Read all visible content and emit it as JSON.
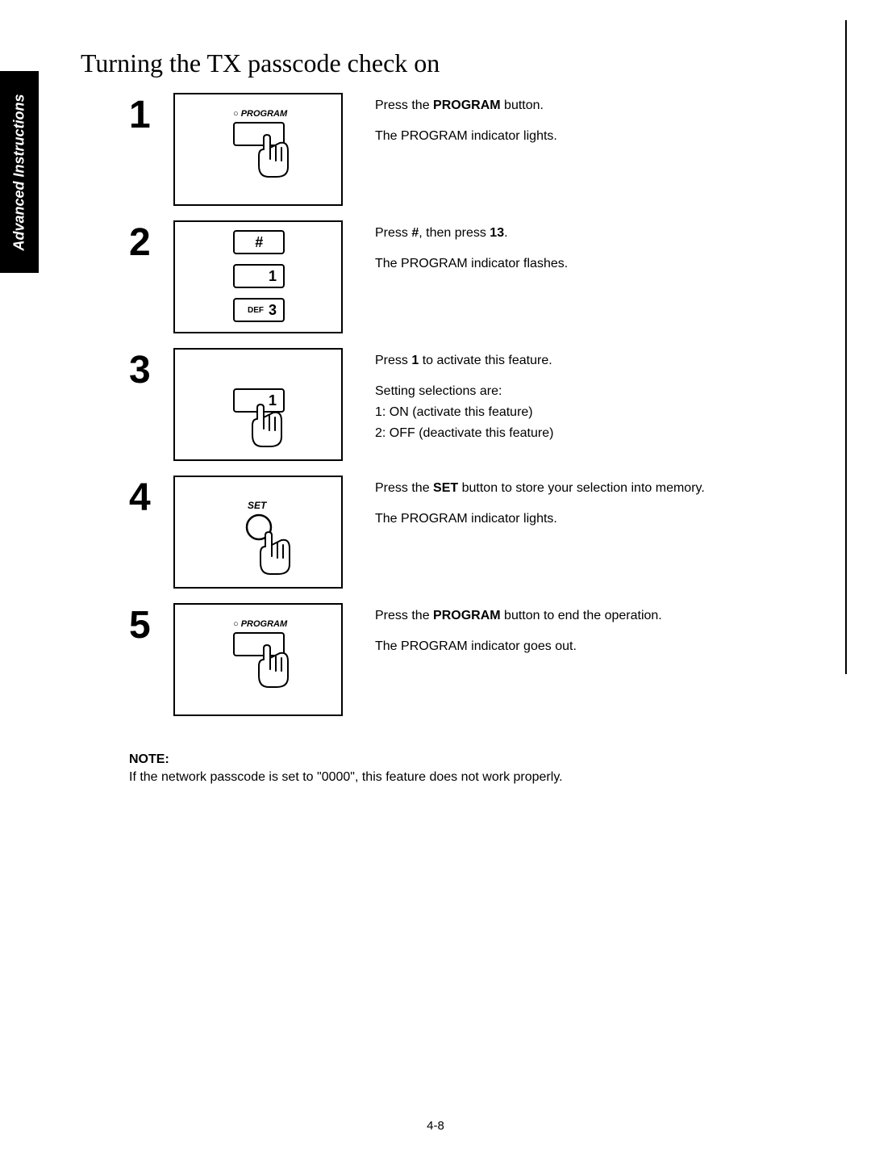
{
  "sideTab": "Advanced Instructions",
  "title": "Turning the TX passcode check on",
  "steps": [
    {
      "num": "1",
      "desc": [
        {
          "pre": "Press the ",
          "bold": "PROGRAM",
          "post": " button."
        },
        {
          "plain": "The PROGRAM indicator lights."
        }
      ],
      "ill": {
        "type": "program"
      }
    },
    {
      "num": "2",
      "desc": [
        {
          "pre": "Press ",
          "bold": "#",
          "mid": ", then press ",
          "bold2": "13",
          "post": "."
        },
        {
          "plain": "The PROGRAM indicator flashes."
        }
      ],
      "ill": {
        "type": "keys3"
      }
    },
    {
      "num": "3",
      "desc": [
        {
          "pre": "Press ",
          "bold": "1",
          "post": " to activate this feature."
        },
        {
          "plain": "Setting selections are:"
        },
        {
          "plain": "1: ON (activate this feature)"
        },
        {
          "plain": "2: OFF (deactivate this feature)"
        }
      ],
      "ill": {
        "type": "key1hand"
      }
    },
    {
      "num": "4",
      "desc": [
        {
          "pre": "Press the ",
          "bold": "SET",
          "post": " button to store your selection into memory."
        },
        {
          "plain": "The PROGRAM indicator lights."
        }
      ],
      "ill": {
        "type": "set"
      }
    },
    {
      "num": "5",
      "desc": [
        {
          "pre": "Press the ",
          "bold": "PROGRAM",
          "post": " button to end the operation."
        },
        {
          "plain": "The PROGRAM indicator goes out."
        }
      ],
      "ill": {
        "type": "program"
      }
    }
  ],
  "note": {
    "label": "NOTE:",
    "text": "If the network passcode is set to \"0000\", this feature does not work properly."
  },
  "pageNumber": "4-8",
  "labels": {
    "program": "PROGRAM",
    "set": "SET",
    "def": "DEF",
    "hash": "#",
    "one": "1",
    "three": "3",
    "circle": "○"
  }
}
